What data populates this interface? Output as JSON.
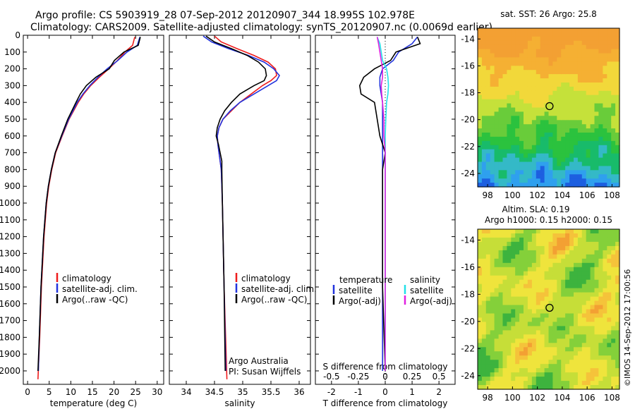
{
  "header": {
    "line1": "Argo profile: CS 5903919_28 07-Sep-2012 20120907_344 18.995S 102.978E",
    "line2": "Climatology: CARS2009. Satellite-adjusted climatology: synTS_20120907.nc (0.0069d earlier)"
  },
  "colors": {
    "red": "#ee1c1c",
    "blue": "#2233dd",
    "black": "#000000",
    "cyan": "#22e0e8",
    "magenta": "#e020e0"
  },
  "depth_axis": {
    "ticks": [
      0,
      100,
      200,
      300,
      400,
      500,
      600,
      700,
      800,
      900,
      1000,
      1100,
      1200,
      1300,
      1400,
      1500,
      1600,
      1700,
      1800,
      1900,
      2000
    ],
    "range": [
      0,
      2080
    ]
  },
  "chart_data": [
    {
      "id": "temperature",
      "type": "line",
      "xlabel": "temperature (deg C)",
      "xlim": [
        -1,
        31.5
      ],
      "xticks": [
        0,
        5,
        10,
        15,
        20,
        25,
        30
      ],
      "legend": [
        "climatology",
        "satellite-adj. clim.",
        "Argo(..raw -QC)"
      ],
      "series": [
        {
          "name": "climatology",
          "color": "#ee1c1c",
          "depth": [
            10,
            60,
            100,
            150,
            200,
            250,
            300,
            350,
            400,
            500,
            600,
            700,
            800,
            900,
            1000,
            1200,
            1500,
            1800,
            2050
          ],
          "values": [
            24.8,
            24.3,
            22.5,
            20.8,
            18.8,
            16.6,
            14.6,
            13.0,
            11.7,
            9.6,
            8.0,
            6.5,
            5.6,
            4.9,
            4.4,
            3.8,
            3.2,
            2.8,
            2.4
          ]
        },
        {
          "name": "satellite-adj. clim.",
          "color": "#2233dd",
          "depth": [
            10,
            60,
            100,
            150,
            200,
            250,
            300,
            350,
            400,
            500,
            600,
            700,
            800,
            900,
            1000,
            1200,
            1500,
            1800,
            2000
          ],
          "values": [
            26.0,
            25.4,
            23.0,
            20.9,
            18.4,
            16.3,
            14.4,
            12.8,
            11.5,
            9.5,
            7.9,
            6.4,
            5.5,
            4.8,
            4.3,
            3.7,
            3.1,
            2.7,
            2.5
          ]
        },
        {
          "name": "Argo(..raw -QC)",
          "color": "#000000",
          "depth": [
            10,
            60,
            100,
            150,
            200,
            250,
            300,
            350,
            400,
            500,
            600,
            700,
            800,
            900,
            1000,
            1200,
            1500,
            1800,
            2000
          ],
          "values": [
            26.1,
            25.6,
            22.3,
            20.1,
            18.9,
            15.8,
            13.6,
            12.2,
            11.2,
            9.3,
            7.8,
            6.4,
            5.5,
            4.8,
            4.3,
            3.7,
            3.1,
            2.7,
            2.4
          ]
        }
      ]
    },
    {
      "id": "salinity",
      "type": "line",
      "xlabel": "salinity",
      "xlim": [
        33.7,
        36.2
      ],
      "xticks": [
        34,
        34.5,
        35,
        35.5,
        36
      ],
      "legend": [
        "climatology",
        "satellite-adj. clim.",
        "Argo(..raw -QC)"
      ],
      "note_line1": "Argo Australia",
      "note_line2": "PI: Susan Wijffels",
      "series": [
        {
          "name": "climatology",
          "color": "#ee1c1c",
          "depth": [
            5,
            40,
            80,
            120,
            160,
            200,
            240,
            270,
            300,
            350,
            400,
            450,
            500,
            550,
            600,
            650,
            700,
            750,
            800,
            1000,
            1500,
            2050
          ],
          "values": [
            34.5,
            34.62,
            34.9,
            35.2,
            35.45,
            35.58,
            35.6,
            35.5,
            35.35,
            35.15,
            34.95,
            34.8,
            34.65,
            34.58,
            34.55,
            34.56,
            34.58,
            34.6,
            34.62,
            34.64,
            34.67,
            34.72
          ]
        },
        {
          "name": "satellite-adj. clim.",
          "color": "#2233dd",
          "depth": [
            5,
            40,
            80,
            120,
            160,
            200,
            240,
            270,
            300,
            350,
            400,
            450,
            500,
            550,
            600,
            650,
            700,
            750,
            800,
            1000,
            1500,
            2000
          ],
          "values": [
            34.3,
            34.45,
            34.75,
            35.1,
            35.38,
            35.55,
            35.65,
            35.6,
            35.45,
            35.2,
            34.95,
            34.78,
            34.65,
            34.58,
            34.55,
            34.56,
            34.58,
            34.6,
            34.62,
            34.64,
            34.67,
            34.7
          ]
        },
        {
          "name": "Argo(..raw -QC)",
          "color": "#000000",
          "depth": [
            5,
            40,
            80,
            120,
            160,
            200,
            240,
            270,
            300,
            350,
            400,
            450,
            500,
            550,
            600,
            650,
            700,
            750,
            800,
            1000,
            1500,
            2000
          ],
          "values": [
            34.35,
            34.5,
            34.8,
            35.08,
            35.28,
            35.4,
            35.42,
            35.38,
            35.2,
            34.95,
            34.8,
            34.68,
            34.6,
            34.55,
            34.53,
            34.57,
            34.6,
            34.63,
            34.63,
            34.64,
            34.67,
            34.69
          ]
        }
      ]
    },
    {
      "id": "difference",
      "type": "line",
      "xlabel": "T difference from climatology",
      "xlabel_top": "S difference from climatology",
      "xlim": [
        -2.6,
        2.6
      ],
      "xticks": [
        -2,
        -1,
        0,
        1,
        2
      ],
      "xticks_top": [
        -0.5,
        -0.25,
        0,
        0.25,
        0.5
      ],
      "legend_temperature": [
        "temperature",
        "satellite",
        "Argo(-adj)"
      ],
      "legend_salinity": [
        "salinity",
        "satellite",
        "Argo(-adj)"
      ],
      "series": [
        {
          "name": "temperature satellite",
          "color": "#2233dd",
          "depth": [
            10,
            50,
            100,
            150,
            200,
            250,
            300,
            350,
            400,
            500,
            600,
            700,
            800,
            1000,
            1500,
            2000
          ],
          "values": [
            1.2,
            1.0,
            0.5,
            0.3,
            -0.1,
            -0.2,
            -0.2,
            -0.15,
            -0.1,
            -0.1,
            -0.1,
            -0.1,
            -0.1,
            -0.1,
            -0.1,
            -0.1
          ]
        },
        {
          "name": "temperature Argo(-adj)",
          "color": "#000000",
          "depth": [
            10,
            50,
            100,
            150,
            200,
            250,
            300,
            350,
            400,
            500,
            600,
            700,
            800,
            1000,
            1500,
            2000
          ],
          "values": [
            1.2,
            1.3,
            0.4,
            0.2,
            -0.4,
            -0.8,
            -0.95,
            -0.9,
            -0.4,
            -0.3,
            -0.2,
            0,
            -0.1,
            -0.1,
            -0.1,
            0
          ]
        },
        {
          "name": "salinity satellite",
          "color": "#22e0e8",
          "depth": [
            10,
            50,
            100,
            150,
            200,
            250,
            300,
            350,
            400,
            500,
            600,
            700,
            800,
            1000,
            1500,
            2000
          ],
          "values": [
            -0.3,
            -0.2,
            -0.15,
            -0.1,
            0.05,
            0.1,
            0.12,
            0.1,
            0.05,
            0.02,
            0,
            0,
            0,
            0,
            0,
            0
          ]
        },
        {
          "name": "salinity Argo(-adj)",
          "color": "#e020e0",
          "depth": [
            10,
            50,
            100,
            150,
            200,
            250,
            300,
            350,
            400,
            500,
            600,
            700,
            800,
            1000,
            1500,
            2000
          ],
          "values": [
            -0.3,
            -0.25,
            -0.2,
            -0.15,
            -0.1,
            -0.1,
            -0.15,
            -0.13,
            -0.1,
            -0.05,
            -0.05,
            0,
            0,
            0,
            0,
            0
          ]
        }
      ]
    }
  ],
  "maps": [
    {
      "id": "sst",
      "title": "sat. SST: 26 Argo: 25.8",
      "yticks": [
        "-14",
        "-16",
        "-18",
        "-20",
        "-22",
        "-24"
      ],
      "xticks": [
        "98",
        "100",
        "102",
        "104",
        "106",
        "108"
      ],
      "marker_lon": 102.978,
      "marker_lat": -18.995
    },
    {
      "id": "sla",
      "title1": "Altim. SLA: 0.19",
      "title2": "Argo h1000: 0.15 h2000: 0.15",
      "yticks": [
        "-14",
        "-16",
        "-18",
        "-20",
        "-22",
        "-24"
      ],
      "xticks": [
        "98",
        "100",
        "102",
        "104",
        "106",
        "108"
      ],
      "marker_lon": 102.978,
      "marker_lat": -18.995
    }
  ],
  "stamp": "©IMOS 14-Sep-2012 17:00:56"
}
